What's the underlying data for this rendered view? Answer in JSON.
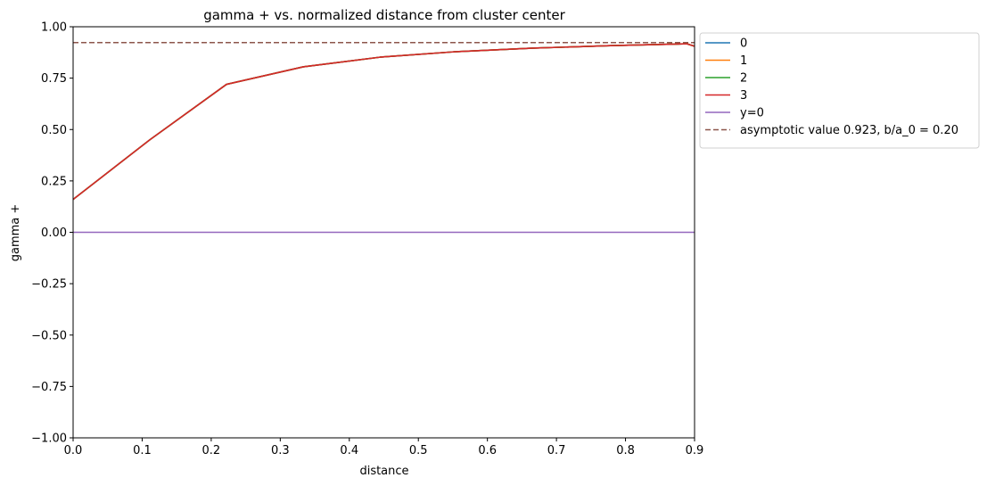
{
  "chart_data": {
    "type": "line",
    "title": "gamma + vs. normalized distance from cluster center",
    "xlabel": "distance",
    "ylabel": "gamma +",
    "xlim": [
      0.0,
      0.9
    ],
    "ylim": [
      -1.0,
      1.0
    ],
    "xticks": [
      "0.0",
      "0.1",
      "0.2",
      "0.3",
      "0.4",
      "0.5",
      "0.6",
      "0.7",
      "0.8",
      "0.9"
    ],
    "yticks": [
      "−1.00",
      "−0.75",
      "−0.50",
      "−0.25",
      "0.00",
      "0.25",
      "0.50",
      "0.75",
      "1.00"
    ],
    "grid": false,
    "legend_position": "outside-top-right",
    "x": [
      0.0,
      0.1111,
      0.2222,
      0.3333,
      0.4444,
      0.5556,
      0.6667,
      0.7778,
      0.8889,
      0.9
    ],
    "series": [
      {
        "name": "0",
        "color": "#1f77b4",
        "values": [
          0.16,
          0.45,
          0.72,
          0.805,
          0.852,
          0.879,
          0.896,
          0.908,
          0.917,
          0.905
        ]
      },
      {
        "name": "1",
        "color": "#ff7f0e",
        "values": [
          0.16,
          0.45,
          0.72,
          0.805,
          0.852,
          0.879,
          0.896,
          0.908,
          0.917,
          0.905
        ]
      },
      {
        "name": "2",
        "color": "#2ca02c",
        "values": [
          0.16,
          0.45,
          0.72,
          0.805,
          0.852,
          0.879,
          0.896,
          0.908,
          0.917,
          0.905
        ]
      },
      {
        "name": "3",
        "color": "#d62728",
        "values": [
          0.16,
          0.45,
          0.72,
          0.805,
          0.852,
          0.879,
          0.896,
          0.908,
          0.917,
          0.905
        ]
      }
    ],
    "hlines": [
      {
        "name": "y=0",
        "y": 0.0,
        "color": "#9467bd",
        "style": "solid"
      },
      {
        "name": "asymptotic value 0.923, b/a_0 = 0.20",
        "y": 0.923,
        "color": "#8c564b",
        "style": "dashed"
      }
    ]
  }
}
